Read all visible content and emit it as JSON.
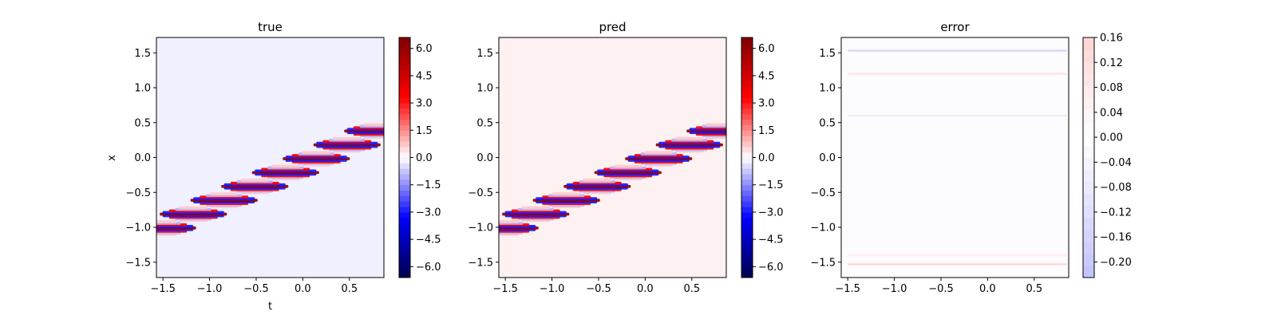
{
  "chart_data": [
    {
      "type": "heatmap",
      "title": "true",
      "xlabel": "t",
      "ylabel": "x",
      "xlim": [
        -1.57,
        0.87
      ],
      "ylim": [
        -1.72,
        1.72
      ],
      "x_ticks": [
        "−1.5",
        "−1.0",
        "−0.5",
        "0.0",
        "0.5"
      ],
      "x_tick_values": [
        -1.5,
        -1.0,
        -0.5,
        0.0,
        0.5
      ],
      "y_ticks": [
        "−1.5",
        "−1.0",
        "−0.5",
        "0.0",
        "0.5",
        "1.0",
        "1.5"
      ],
      "y_tick_values": [
        -1.5,
        -1.0,
        -0.5,
        0.0,
        0.5,
        1.0,
        1.5
      ],
      "colormap": "seismic",
      "colorbar": {
        "range": [
          -6.6,
          6.6
        ],
        "ticks": [
          "−6.0",
          "−4.5",
          "−3.0",
          "−1.5",
          "0.0",
          "1.5",
          "3.0",
          "4.5",
          "6.0"
        ],
        "tick_values": [
          -6.0,
          -4.5,
          -3.0,
          -1.5,
          0.0,
          1.5,
          3.0,
          4.5,
          6.0
        ]
      },
      "field": {
        "description_values": "soliton band along diagonal",
        "start": {
          "t": -1.57,
          "x": -1.05
        },
        "end": {
          "t": 0.87,
          "x": 0.42
        },
        "peak_amplitude": 6.5
      }
    },
    {
      "type": "heatmap",
      "title": "pred",
      "xlabel": "",
      "ylabel": "",
      "xlim": [
        -1.57,
        0.87
      ],
      "ylim": [
        -1.72,
        1.72
      ],
      "x_ticks": [
        "−1.5",
        "−1.0",
        "−0.5",
        "0.0",
        "0.5"
      ],
      "x_tick_values": [
        -1.5,
        -1.0,
        -0.5,
        0.0,
        0.5
      ],
      "y_ticks": [
        "−1.5",
        "−1.0",
        "−0.5",
        "0.0",
        "0.5",
        "1.0",
        "1.5"
      ],
      "y_tick_values": [
        -1.5,
        -1.0,
        -0.5,
        0.0,
        0.5,
        1.0,
        1.5
      ],
      "colormap": "seismic",
      "colorbar": {
        "range": [
          -6.6,
          6.6
        ],
        "ticks": [
          "−6.0",
          "−4.5",
          "−3.0",
          "−1.5",
          "0.0",
          "1.5",
          "3.0",
          "4.5",
          "6.0"
        ],
        "tick_values": [
          -6.0,
          -4.5,
          -3.0,
          -1.5,
          0.0,
          1.5,
          3.0,
          4.5,
          6.0
        ]
      },
      "field": {
        "start": {
          "t": -1.57,
          "x": -1.05
        },
        "end": {
          "t": 0.87,
          "x": 0.42
        },
        "peak_amplitude": 6.5
      }
    },
    {
      "type": "heatmap",
      "title": "error",
      "xlabel": "",
      "ylabel": "",
      "xlim": [
        -1.57,
        0.87
      ],
      "ylim": [
        -1.72,
        1.72
      ],
      "x_ticks": [
        "−1.5",
        "−1.0",
        "−0.5",
        "0.0",
        "0.5"
      ],
      "x_tick_values": [
        -1.5,
        -1.0,
        -0.5,
        0.0,
        0.5
      ],
      "y_ticks": [
        "−1.5",
        "−1.0",
        "−0.5",
        "0.0",
        "0.5",
        "1.0",
        "1.5"
      ],
      "y_tick_values": [
        -1.5,
        -1.0,
        -0.5,
        0.0,
        0.5,
        1.0,
        1.5
      ],
      "colormap": "seismic",
      "colorbar": {
        "range": [
          -0.225,
          0.16
        ],
        "ticks": [
          "−0.20",
          "−0.16",
          "−0.12",
          "−0.08",
          "−0.04",
          "0.00",
          "0.04",
          "0.08",
          "0.12",
          "0.16"
        ],
        "tick_values": [
          -0.2,
          -0.16,
          -0.12,
          -0.08,
          -0.04,
          0.0,
          0.04,
          0.08,
          0.12,
          0.16
        ]
      }
    }
  ],
  "colors": {
    "seismic_stops": [
      "#00004c",
      "#0000ff",
      "#ffffff",
      "#ff0000",
      "#800000"
    ],
    "background_true": "#f0f0ff",
    "background_pred": "#fdf1f1",
    "background_error": "#fcfbfd"
  }
}
